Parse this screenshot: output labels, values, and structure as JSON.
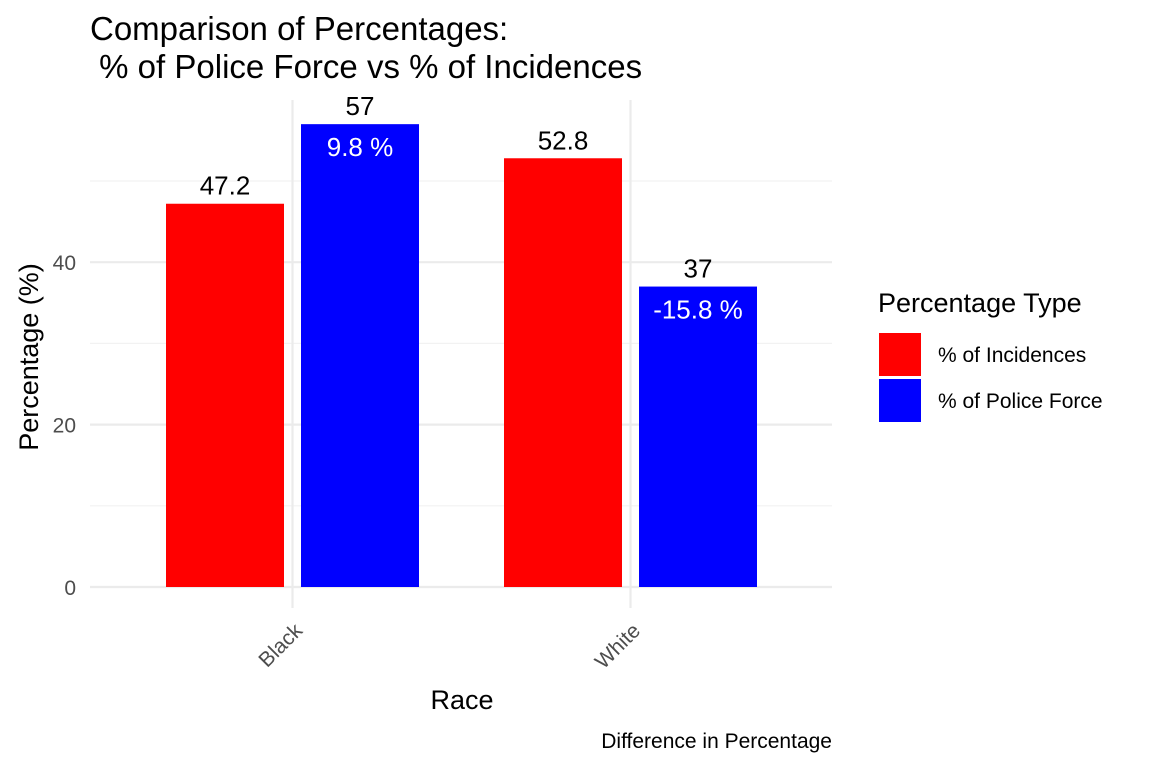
{
  "chart_data": {
    "type": "bar",
    "title_line1": "Comparison of Percentages:",
    "title_line2": " % of Police Force vs % of Incidences",
    "xlabel": "Race",
    "ylabel": "Percentage (%)",
    "caption": "Difference in Percentage",
    "categories": [
      "Black",
      "White"
    ],
    "yticks": [
      0,
      20,
      40
    ],
    "ylim": [
      0,
      58
    ],
    "grid": true,
    "legend": {
      "title": "Percentage Type",
      "position": "right"
    },
    "series": [
      {
        "name": "% of Incidences",
        "color": "#ff0000",
        "values": [
          47.2,
          52.8
        ],
        "labels": [
          "47.2",
          "52.8"
        ]
      },
      {
        "name": "% of Police Force",
        "color": "#0000ff",
        "values": [
          57,
          37
        ],
        "labels": [
          "57",
          "37"
        ]
      }
    ],
    "difference_labels": [
      "9.8 %",
      "-15.8 %"
    ]
  }
}
